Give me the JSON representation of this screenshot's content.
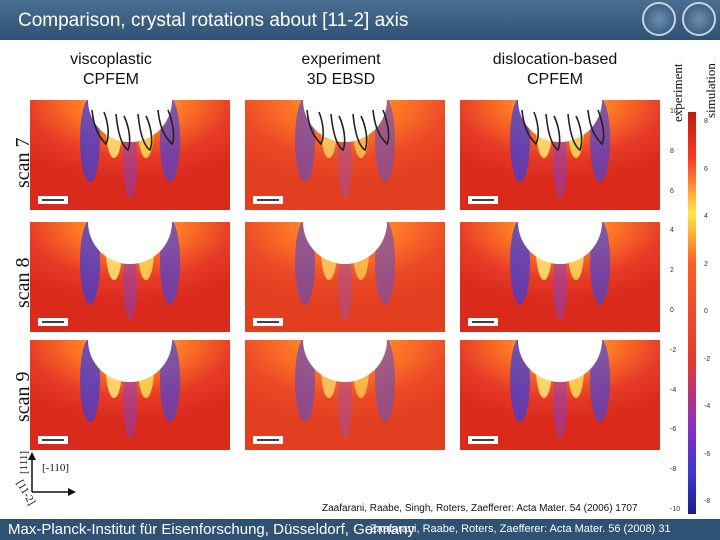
{
  "header": {
    "title": "Comparison, crystal rotations about [11-2] axis",
    "colors": {
      "bar": "#2f5274",
      "accent": "#e4281b"
    }
  },
  "columns": [
    {
      "label": "viscoplastic\nCPFEM"
    },
    {
      "label": "experiment\n3D EBSD"
    },
    {
      "label": "dislocation-based\nCPFEM"
    }
  ],
  "rows": [
    {
      "label": "scan 7"
    },
    {
      "label": "scan 8"
    },
    {
      "label": "scan 9"
    }
  ],
  "side_labels": {
    "experiment": "experiment",
    "simulation": "simulation"
  },
  "legend": {
    "left_ticks": [
      "10",
      "8",
      "6",
      "4",
      "2",
      "0",
      "-2",
      "-4",
      "-6",
      "-8",
      "-10"
    ],
    "right_ticks": [
      "8",
      "6",
      "4",
      "2",
      "0",
      "-2",
      "-4",
      "-6",
      "-8"
    ],
    "icons": [
      "color-scale-icon"
    ]
  },
  "axes": {
    "vertical": "[111]",
    "horizontal": "[-110]",
    "diagonal": "[11-2]"
  },
  "references": {
    "ref1": "Zaafarani, Raabe, Singh, Roters, Zaefferer: Acta Mater. 54 (2006) 1707",
    "ref2": "Zaafarani, Raabe, Roters, Zaefferer: Acta Mater. 56 (2008) 31"
  },
  "footer": {
    "institute": "Max-Planck-Institut für Eisenforschung, Düsseldorf, Germany"
  }
}
